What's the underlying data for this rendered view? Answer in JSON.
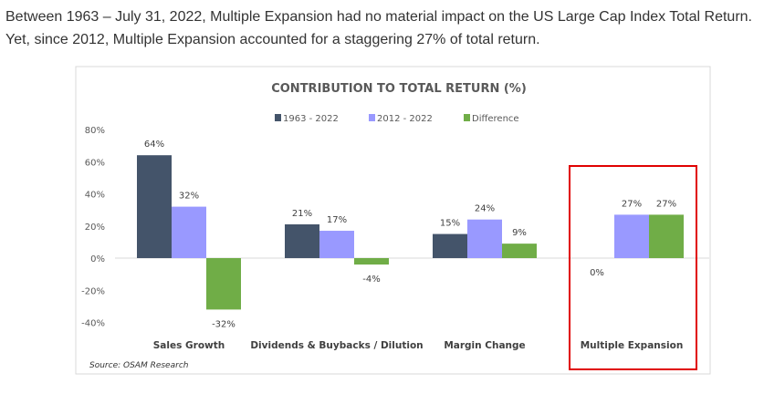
{
  "intro_text": "Between 1963 – July 31, 2022, Multiple Expansion had no material impact on the US Large Cap Index Total Return. Yet, since 2012, Multiple Expansion accounted for a staggering 27% of total return.",
  "chart_data": {
    "type": "bar",
    "title": "CONTRIBUTION TO TOTAL RETURN (%)",
    "categories": [
      "Sales Growth",
      "Dividends & Buybacks / Dilution",
      "Margin Change",
      "Multiple Expansion"
    ],
    "series": [
      {
        "name": "1963 - 2022",
        "color": "#44546a",
        "values": [
          64,
          21,
          15,
          0
        ],
        "labels": [
          "64%",
          "21%",
          "15%",
          "0%"
        ]
      },
      {
        "name": "2012 - 2022",
        "color": "#9999ff",
        "values": [
          32,
          17,
          24,
          27
        ],
        "labels": [
          "32%",
          "17%",
          "24%",
          "27%"
        ]
      },
      {
        "name": "Difference",
        "color": "#70ad47",
        "values": [
          -32,
          -4,
          9,
          27
        ],
        "labels": [
          "-32%",
          "-4%",
          "9%",
          "27%"
        ]
      }
    ],
    "yticks": [
      "80%",
      "60%",
      "40%",
      "20%",
      "0%",
      "-20%",
      "-40%"
    ],
    "ylim": [
      -40,
      80
    ],
    "legend_position": "top",
    "highlight_category": "Multiple Expansion",
    "highlight_color": "#e00000",
    "source": "Source: OSAM Research"
  }
}
